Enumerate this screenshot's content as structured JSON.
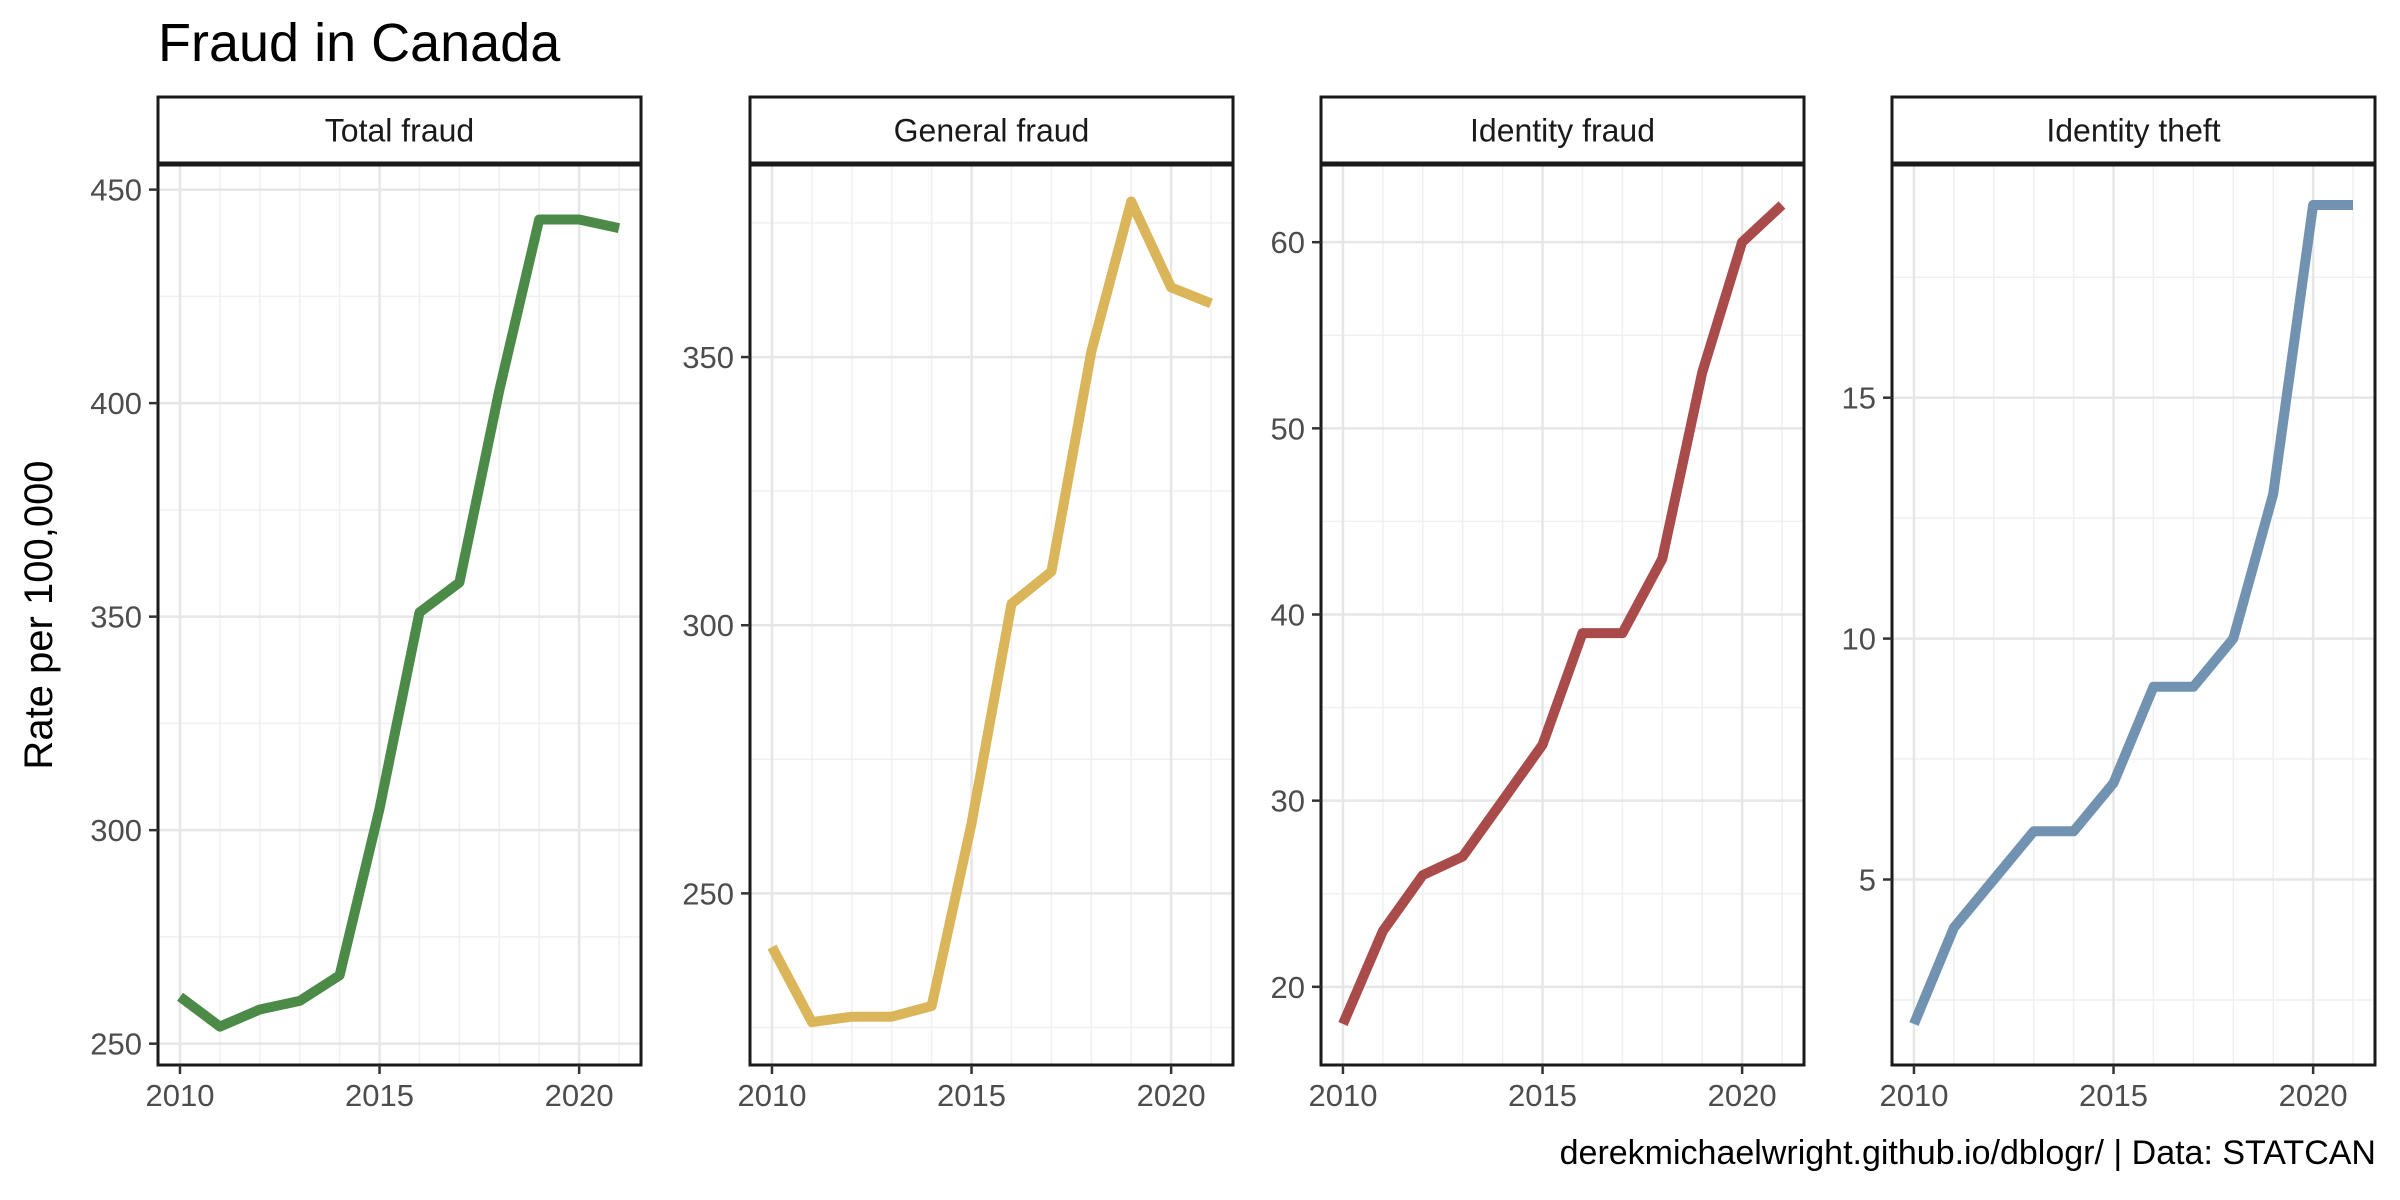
{
  "title": "Fraud in Canada",
  "caption": "derekmichaelwright.github.io/dblogr/ | Data: STATCAN",
  "chart_data": {
    "type": "line",
    "ylabel": "Rate per 100,000",
    "xlabel": "",
    "grid": true,
    "x": [
      2010,
      2011,
      2012,
      2013,
      2014,
      2015,
      2016,
      2017,
      2018,
      2019,
      2020,
      2021
    ],
    "x_ticks": [
      2010,
      2015,
      2020
    ],
    "xlim": [
      2009.45,
      2021.55
    ],
    "panels": [
      {
        "label": "Total fraud",
        "color": "#4b8b47",
        "ylim": [
          245,
          456
        ],
        "y_ticks": [
          250,
          300,
          350,
          400,
          450
        ],
        "values": [
          261,
          254,
          258,
          260,
          266,
          305,
          351,
          358,
          403,
          443,
          443,
          441
        ]
      },
      {
        "label": "General fraud",
        "color": "#dbb55a",
        "ylim": [
          218,
          386
        ],
        "y_ticks": [
          250,
          300,
          350
        ],
        "values": [
          240,
          226,
          227,
          227,
          229,
          263,
          304,
          310,
          351,
          379,
          363,
          360
        ]
      },
      {
        "label": "Identity fraud",
        "color": "#aa4b4b",
        "ylim": [
          15.8,
          64.2
        ],
        "y_ticks": [
          20,
          30,
          40,
          50,
          60
        ],
        "values": [
          18,
          23,
          26,
          27,
          30,
          33,
          39,
          39,
          43,
          53,
          60,
          62
        ]
      },
      {
        "label": "Identity theft",
        "color": "#7193b1",
        "ylim": [
          1.15,
          19.85
        ],
        "y_ticks": [
          5,
          10,
          15
        ],
        "values": [
          2,
          4,
          5,
          6,
          6,
          7,
          9,
          9,
          10,
          13,
          19,
          19
        ]
      }
    ]
  }
}
